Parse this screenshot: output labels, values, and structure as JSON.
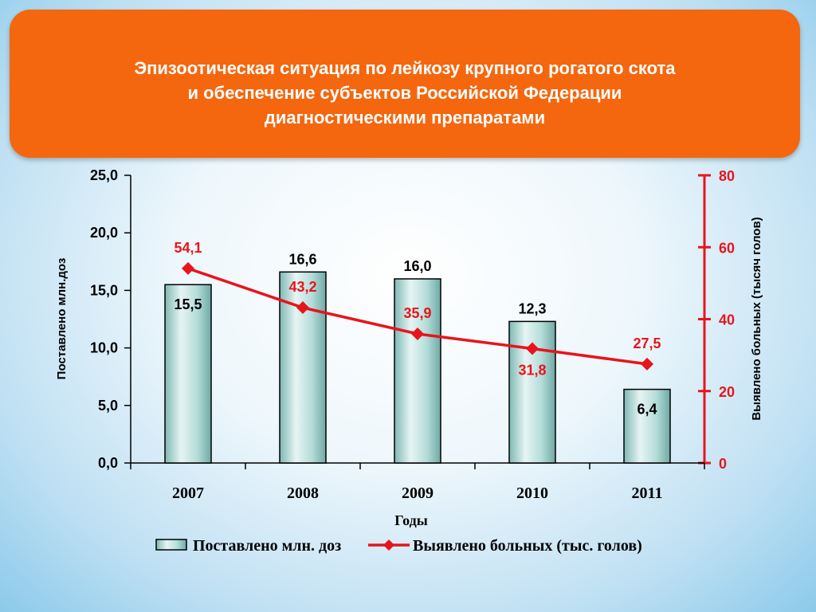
{
  "title": {
    "line1": "Эпизоотическая ситуация по лейкозу крупного рогатого скота",
    "line2": "и обеспечение субъектов Российской Федерации",
    "line3": "диагностическими препаратами"
  },
  "colors": {
    "banner": "#f4670f",
    "bar_fill": "#a8d3cf",
    "line": "#e8141c",
    "left_axis": "#000000",
    "right_axis": "#e8141c"
  },
  "chart_data": {
    "type": "bar",
    "title": "",
    "categories": [
      "2007",
      "2008",
      "2009",
      "2010",
      "2011"
    ],
    "xlabel": "Годы",
    "series": [
      {
        "name": "Поставлено млн. доз",
        "type": "bar",
        "axis": "left",
        "values": [
          15.5,
          16.6,
          16.0,
          12.3,
          6.4
        ],
        "labels": [
          "15,5",
          "16,6",
          "16,0",
          "12,3",
          "6,4"
        ]
      },
      {
        "name": "Выявлено больных (тыс. голов)",
        "type": "line",
        "axis": "right",
        "values": [
          54.1,
          43.2,
          35.9,
          31.8,
          27.5
        ],
        "labels": [
          "54,1",
          "43,2",
          "35,9",
          "31,8",
          "27,5"
        ]
      }
    ],
    "y_left": {
      "label": "Поставлено млн.доз",
      "ylim": [
        0,
        25
      ],
      "ticks": [
        "0,0",
        "5,0",
        "10,0",
        "15,0",
        "20,0",
        "25,0"
      ]
    },
    "y_right": {
      "label": "Выявлено больных (тысяч голов)",
      "ylim": [
        0,
        80
      ],
      "ticks": [
        "0",
        "20",
        "40",
        "60",
        "80"
      ]
    },
    "legend": {
      "position": "bottom"
    },
    "grid": false
  }
}
